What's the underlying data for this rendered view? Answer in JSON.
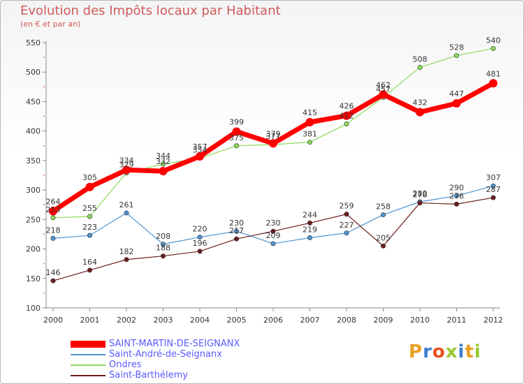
{
  "chart_data": {
    "type": "line",
    "title": "Evolution des Impôts locaux par Habitant",
    "subtitle": "(en € et par an)",
    "categories": [
      "2000",
      "2001",
      "2002",
      "2003",
      "2004",
      "2005",
      "2006",
      "2007",
      "2008",
      "2009",
      "2010",
      "2011",
      "2012"
    ],
    "ylim": [
      100,
      550
    ],
    "yticks": [
      100,
      150,
      200,
      250,
      300,
      350,
      400,
      450,
      500,
      550
    ],
    "grid": false,
    "series": [
      {
        "name": "SAINT-MARTIN-DE-SEIGNANX",
        "color": "#ff0000",
        "values": [
          264,
          305,
          334,
          332,
          357,
          399,
          379,
          415,
          426,
          462,
          432,
          447,
          481
        ]
      },
      {
        "name": "Saint-André-de-Seignanx",
        "color": "#4f93cf",
        "values": [
          218,
          223,
          261,
          208,
          220,
          230,
          209,
          219,
          227,
          258,
          280,
          290,
          307
        ]
      },
      {
        "name": "Ondres",
        "color": "#8bd95a",
        "values": [
          253,
          255,
          329,
          344,
          354,
          375,
          377,
          381,
          412,
          457,
          508,
          528,
          540
        ]
      },
      {
        "name": "Saint-Barthélemy",
        "color": "#6b1e1e",
        "values": [
          146,
          164,
          182,
          188,
          196,
          217,
          230,
          244,
          259,
          205,
          278,
          276,
          287
        ]
      }
    ]
  },
  "logo": {
    "text": "Proxiti"
  }
}
